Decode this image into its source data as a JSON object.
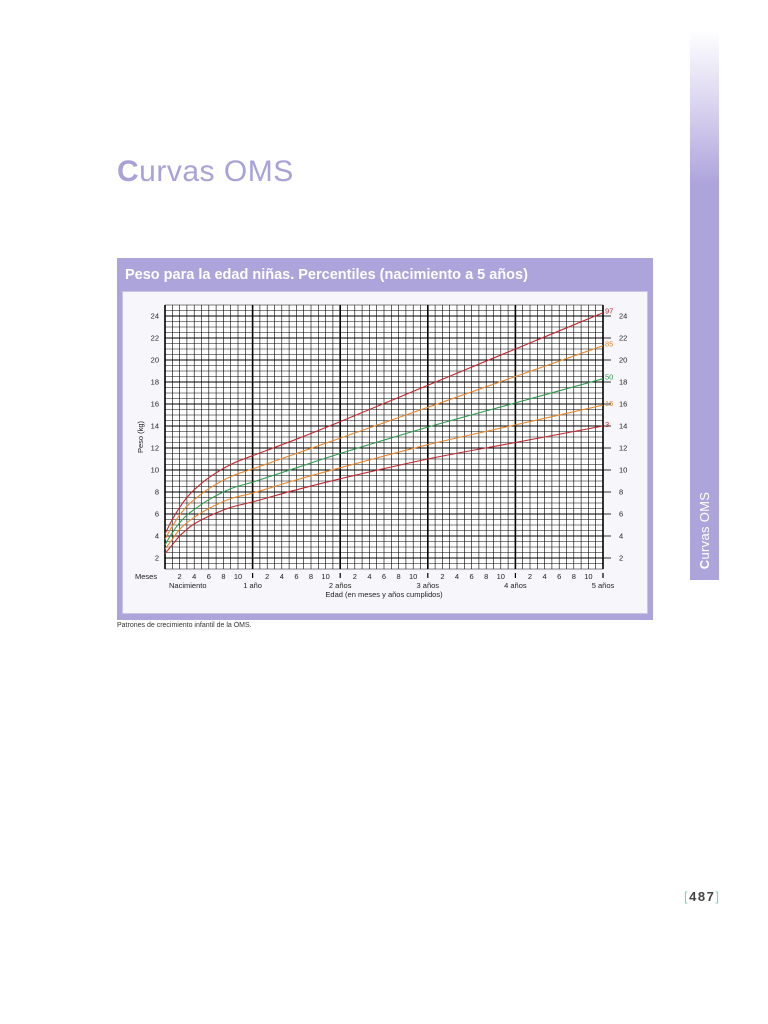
{
  "page": {
    "title_initial": "C",
    "title_rest": "urvas OMS",
    "side_tab_initial": "C",
    "side_tab_rest": "urvas OMS",
    "source_note": "Patrones de crecimiento infantil de la OMS.",
    "page_number": "487",
    "bracket_left": "[",
    "bracket_right": "]"
  },
  "colors": {
    "accent": "#aea4dc",
    "title": "#a9a2d8",
    "grid": "#000000",
    "p97": "#c1272d",
    "p85": "#e8872d",
    "p50": "#2e9b4e",
    "p15": "#e8872d",
    "p3": "#c1272d"
  },
  "chart_data": {
    "type": "line",
    "title": "Peso para la edad niñas. Percentiles (nacimiento a 5 años)",
    "xlabel": "Edad (en meses y años cumplidos)",
    "ylabel": "Peso (kg)",
    "x_unit_label": "Meses",
    "xlim": [
      0,
      60
    ],
    "ylim": [
      1,
      25
    ],
    "yticks": [
      2,
      4,
      6,
      8,
      10,
      12,
      14,
      16,
      18,
      20,
      22,
      24
    ],
    "month_tick_labels": [
      "2",
      "4",
      "6",
      "8",
      "10"
    ],
    "year_labels": [
      "Nacimiento",
      "1 año",
      "2 años",
      "3 años",
      "4 años",
      "5 años"
    ],
    "grid": true,
    "series": [
      {
        "name": "97",
        "color": "#c1272d",
        "x": [
          0,
          1,
          2,
          3,
          4,
          6,
          9,
          12,
          18,
          24,
          36,
          48,
          60
        ],
        "values": [
          4.2,
          5.5,
          6.6,
          7.5,
          8.2,
          9.3,
          10.5,
          11.3,
          12.8,
          14.4,
          17.7,
          21.0,
          24.3
        ]
      },
      {
        "name": "85",
        "color": "#e8872d",
        "x": [
          0,
          1,
          2,
          3,
          4,
          6,
          9,
          12,
          18,
          24,
          36,
          48,
          60
        ],
        "values": [
          3.7,
          4.9,
          5.9,
          6.7,
          7.3,
          8.3,
          9.4,
          10.1,
          11.5,
          12.9,
          15.7,
          18.5,
          21.3
        ]
      },
      {
        "name": "50",
        "color": "#2e9b4e",
        "x": [
          0,
          1,
          2,
          3,
          4,
          6,
          9,
          12,
          18,
          24,
          36,
          48,
          60
        ],
        "values": [
          3.2,
          4.3,
          5.2,
          5.9,
          6.4,
          7.3,
          8.3,
          8.9,
          10.2,
          11.5,
          13.9,
          16.1,
          18.3
        ]
      },
      {
        "name": "15",
        "color": "#e8872d",
        "x": [
          0,
          1,
          2,
          3,
          4,
          6,
          9,
          12,
          18,
          24,
          36,
          48,
          60
        ],
        "values": [
          2.8,
          3.7,
          4.6,
          5.2,
          5.7,
          6.5,
          7.4,
          7.9,
          9.1,
          10.2,
          12.3,
          14.1,
          15.9
        ]
      },
      {
        "name": "3",
        "color": "#c1272d",
        "x": [
          0,
          1,
          2,
          3,
          4,
          6,
          9,
          12,
          18,
          24,
          36,
          48,
          60
        ],
        "values": [
          2.4,
          3.2,
          4.0,
          4.6,
          5.1,
          5.8,
          6.6,
          7.1,
          8.2,
          9.2,
          11.0,
          12.5,
          14.0
        ]
      }
    ]
  }
}
